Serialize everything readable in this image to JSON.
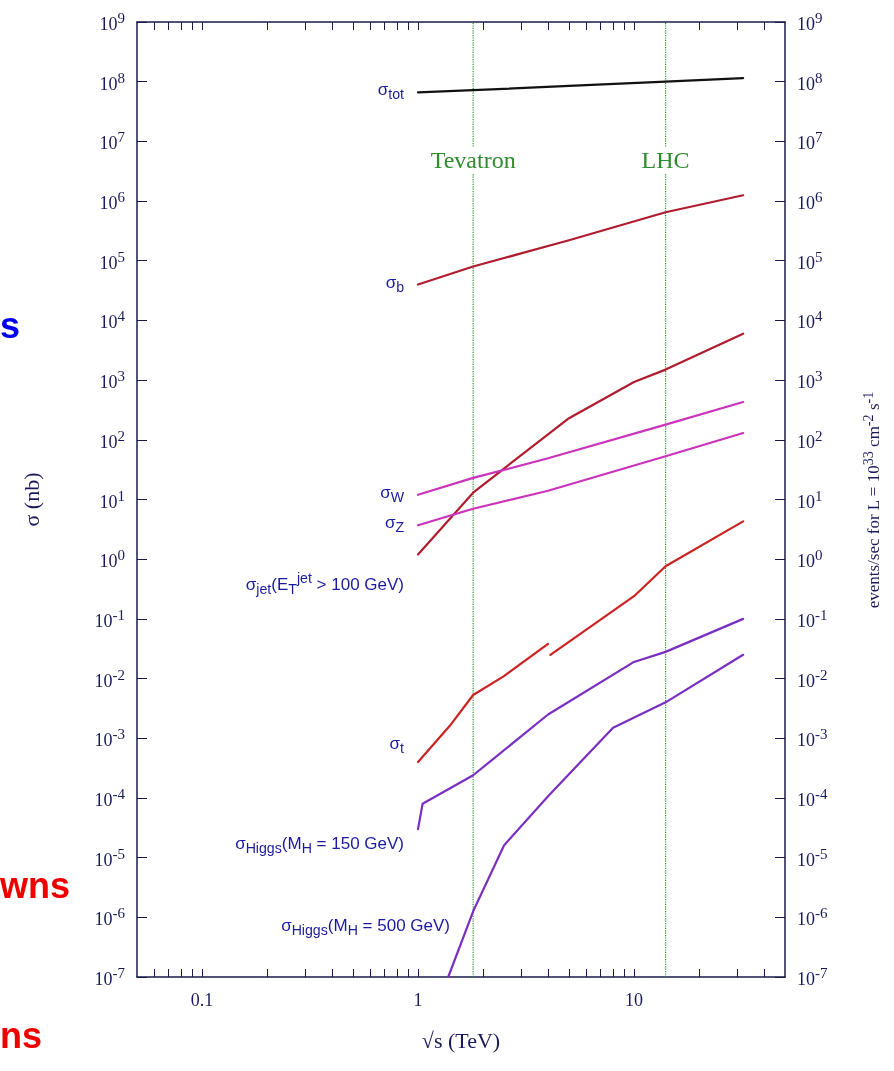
{
  "chart_data": {
    "type": "line",
    "xlabel": "√s (TeV)",
    "ylabel": "σ (nb)",
    "y2label": "events/sec for L = 10$^{33}$ cm$^{-2}$ s$^{-1}$",
    "xlim": [
      0.05,
      50
    ],
    "ylim": [
      1e-07,
      1000000000.0
    ],
    "log": "xy",
    "xticks": [
      {
        "value": 0.06,
        "label": null
      },
      {
        "value": 0.07,
        "label": null
      },
      {
        "value": 0.08,
        "label": null
      },
      {
        "value": 0.09,
        "label": null
      },
      0.1,
      {
        "value": 0.2,
        "label": null
      },
      {
        "value": 0.3,
        "label": null
      },
      {
        "value": 0.4,
        "label": null
      },
      {
        "value": 0.5,
        "label": null
      },
      {
        "value": 0.6,
        "label": null
      },
      {
        "value": 0.7,
        "label": null
      },
      {
        "value": 0.8,
        "label": null
      },
      {
        "value": 0.9,
        "label": null
      },
      1,
      {
        "value": 2,
        "label": null
      },
      {
        "value": 3,
        "label": null
      },
      {
        "value": 4,
        "label": null
      },
      {
        "value": 5,
        "label": null
      },
      {
        "value": 6,
        "label": null
      },
      {
        "value": 7,
        "label": null
      },
      {
        "value": 8,
        "label": null
      },
      {
        "value": 9,
        "label": null
      },
      10,
      {
        "value": 20,
        "label": null
      },
      {
        "value": 30,
        "label": null
      },
      {
        "value": 40,
        "label": null
      }
    ],
    "yticks": [
      {
        "value": 1e-07,
        "label": "10$^{-7}$"
      },
      {
        "value": 1e-06,
        "label": "10$^{-6}$"
      },
      {
        "value": 1e-05,
        "label": "10$^{-5}$"
      },
      {
        "value": 0.0001,
        "label": "10$^{-4}$"
      },
      {
        "value": 0.001,
        "label": "10$^{-3}$"
      },
      {
        "value": 0.01,
        "label": "10$^{-2}$"
      },
      {
        "value": 0.1,
        "label": "10$^{-1}$"
      },
      {
        "value": 1,
        "label": "10$^{0}$"
      },
      {
        "value": 10,
        "label": "10$^{1}$"
      },
      {
        "value": 100,
        "label": "10$^{2}$"
      },
      {
        "value": 1000,
        "label": "10$^{3}$"
      },
      {
        "value": 10000.0,
        "label": "10$^{4}$"
      },
      {
        "value": 100000.0,
        "label": "10$^{5}$"
      },
      {
        "value": 1000000.0,
        "label": "10$^{6}$"
      },
      {
        "value": 10000000.0,
        "label": "10$^{7}$"
      },
      {
        "value": 100000000.0,
        "label": "10$^{8}$"
      },
      {
        "value": 1000000000.0,
        "label": "10$^{9}$"
      }
    ],
    "grid": false,
    "legend": false,
    "marker": "none",
    "line_style": "solid",
    "series": [
      {
        "name": "σ$_{tot}$",
        "color": "#111111",
        "x": [
          1,
          1.8,
          5,
          14,
          32
        ],
        "values": [
          66000000.0,
          72000000.0,
          85000000.0,
          100000000.0,
          115000000.0
        ]
      },
      {
        "name": "σ$_{b}$",
        "color": "#b01c2e",
        "x": [
          1,
          1.8,
          5,
          14,
          32
        ],
        "values": [
          40000.0,
          80000.0,
          220000.0,
          650000.0,
          1250000.0
        ]
      },
      {
        "name": "σ$_{jet}$(E$_{T}$$^{jet}$ > 100 GeV)",
        "color": "#b01c2e",
        "x": [
          1,
          1.8,
          2.5,
          5,
          10,
          14,
          32
        ],
        "values": [
          1.2,
          13,
          33,
          230,
          930,
          1500,
          6000
        ]
      },
      {
        "name": "σ$_{W}$",
        "color": "#cc33bb",
        "x": [
          1,
          1.8,
          4,
          14,
          32
        ],
        "values": [
          12,
          23,
          49,
          180,
          430
        ]
      },
      {
        "name": "σ$_{Z}$",
        "color": "#cc33bb",
        "x": [
          1,
          1.8,
          4,
          14,
          32
        ],
        "values": [
          3.7,
          7,
          14,
          53,
          130
        ]
      },
      {
        "name": "σ$_{t}$",
        "color": "#cc2222",
        "x": [
          1,
          1.4,
          1.8,
          2.5,
          4.0,
          4.05,
          4.1,
          10,
          14,
          32
        ],
        "values": [
          0.0004,
          0.0016,
          0.0053,
          0.011,
          0.038,
          null,
          0.025,
          0.24,
          0.76,
          4.3
        ]
      },
      {
        "name": "σ$_{Higgs}$(M$_{H}$ = 150 GeV)",
        "color": "#7a2fc0",
        "x": [
          1,
          1.05,
          1.8,
          4,
          10,
          14,
          32
        ],
        "values": [
          3e-05,
          8e-05,
          0.00024,
          0.0025,
          0.019,
          0.028,
          0.1
        ]
      },
      {
        "name": "σ$_{Higgs}$(M$_{H}$ = 500 GeV)",
        "color": "#7a2fc0",
        "x": [
          1.38,
          1.8,
          2.5,
          4,
          8,
          14,
          32
        ],
        "values": [
          1e-07,
          1.26e-06,
          1.6e-05,
          0.000107,
          0.0015,
          0.004,
          0.025
        ]
      }
    ],
    "ref_lines": [
      {
        "axis": "x",
        "value": 1.8,
        "label": "Tevatron",
        "color": "#2e8b2e",
        "line_style": "dotted"
      },
      {
        "axis": "x",
        "value": 14,
        "label": "LHC",
        "color": "#2e8b2e",
        "line_style": "dotted"
      }
    ],
    "annotations": [
      "s",
      "wns",
      "ns"
    ]
  }
}
